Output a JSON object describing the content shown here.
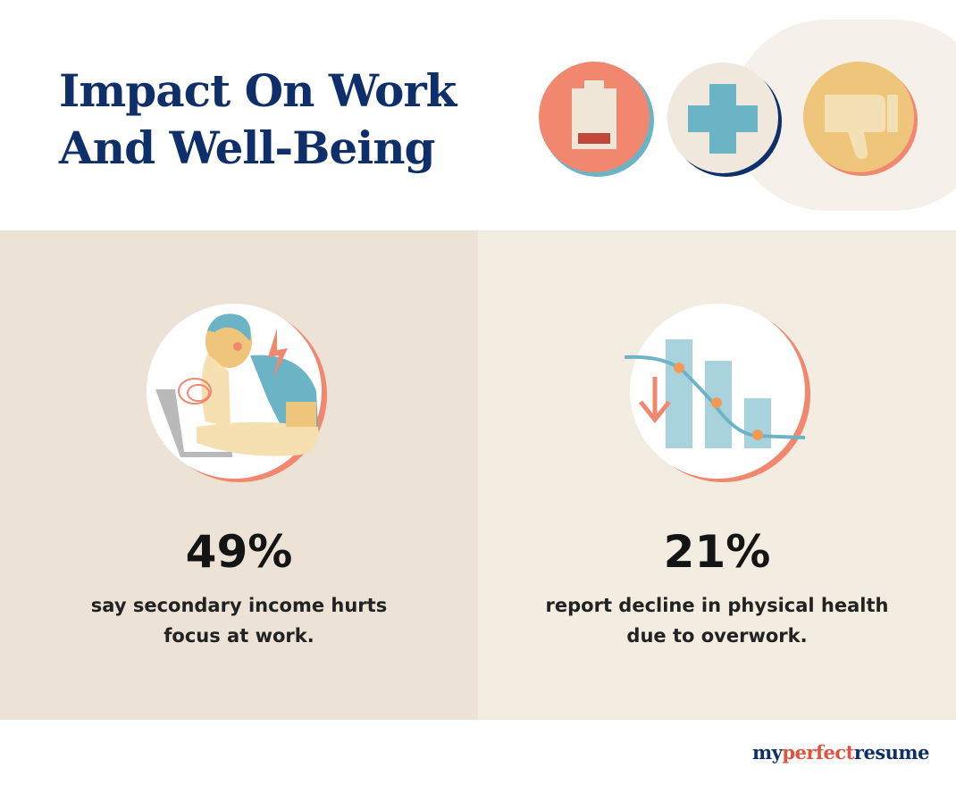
{
  "header": {
    "title_line1": "Impact On Work",
    "title_line2": "And Well-Being",
    "icons": [
      "low-battery-icon",
      "medical-cross-icon",
      "thumbs-down-icon"
    ]
  },
  "stats": [
    {
      "value": "49%",
      "desc_line1": "say secondary income hurts",
      "desc_line2": "focus at work.",
      "illustration": "stressed-worker-icon"
    },
    {
      "value": "21%",
      "desc_line1": "report decline in physical health",
      "desc_line2": "due to overwork.",
      "illustration": "declining-chart-icon"
    }
  ],
  "brand": {
    "part1": "my",
    "part2": "perfect",
    "part3": "resume"
  },
  "colors": {
    "navy": "#0f2f6b",
    "coral": "#f2876f",
    "teal": "#6bb4c6",
    "mustard": "#eec57b",
    "beige_left": "#ece2d5",
    "beige_right": "#f3ece1"
  }
}
